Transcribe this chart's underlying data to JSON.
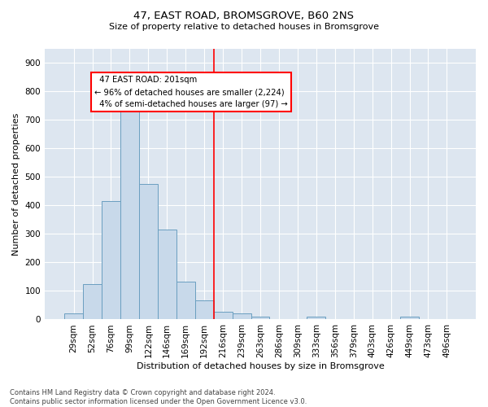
{
  "title": "47, EAST ROAD, BROMSGROVE, B60 2NS",
  "subtitle": "Size of property relative to detached houses in Bromsgrove",
  "xlabel": "Distribution of detached houses by size in Bromsgrove",
  "ylabel": "Number of detached properties",
  "footer_line1": "Contains HM Land Registry data © Crown copyright and database right 2024.",
  "footer_line2": "Contains public sector information licensed under the Open Government Licence v3.0.",
  "bin_labels": [
    "29sqm",
    "52sqm",
    "76sqm",
    "99sqm",
    "122sqm",
    "146sqm",
    "169sqm",
    "192sqm",
    "216sqm",
    "239sqm",
    "263sqm",
    "286sqm",
    "309sqm",
    "333sqm",
    "356sqm",
    "379sqm",
    "403sqm",
    "426sqm",
    "449sqm",
    "473sqm",
    "496sqm"
  ],
  "bar_values": [
    20,
    125,
    415,
    730,
    475,
    315,
    132,
    67,
    28,
    22,
    10,
    0,
    0,
    10,
    0,
    0,
    0,
    0,
    10,
    0,
    0
  ],
  "bar_color": "#c8d9ea",
  "bar_edge_color": "#6a9fc0",
  "vline_x": 7.5,
  "vline_color": "red",
  "annotation_text": "  47 EAST ROAD: 201sqm\n← 96% of detached houses are smaller (2,224)\n  4% of semi-detached houses are larger (97) →",
  "annotation_box_color": "white",
  "annotation_box_edge_color": "red",
  "ylim": [
    0,
    950
  ],
  "yticks": [
    0,
    100,
    200,
    300,
    400,
    500,
    600,
    700,
    800,
    900
  ],
  "grid_color": "white",
  "background_color": "#dde6f0",
  "plot_bg_color": "#dde6f0",
  "title_fontsize": 9.5,
  "subtitle_fontsize": 8,
  "ylabel_fontsize": 8,
  "xlabel_fontsize": 8,
  "tick_fontsize": 7.5,
  "footer_fontsize": 6,
  "footer_color": "#444444"
}
